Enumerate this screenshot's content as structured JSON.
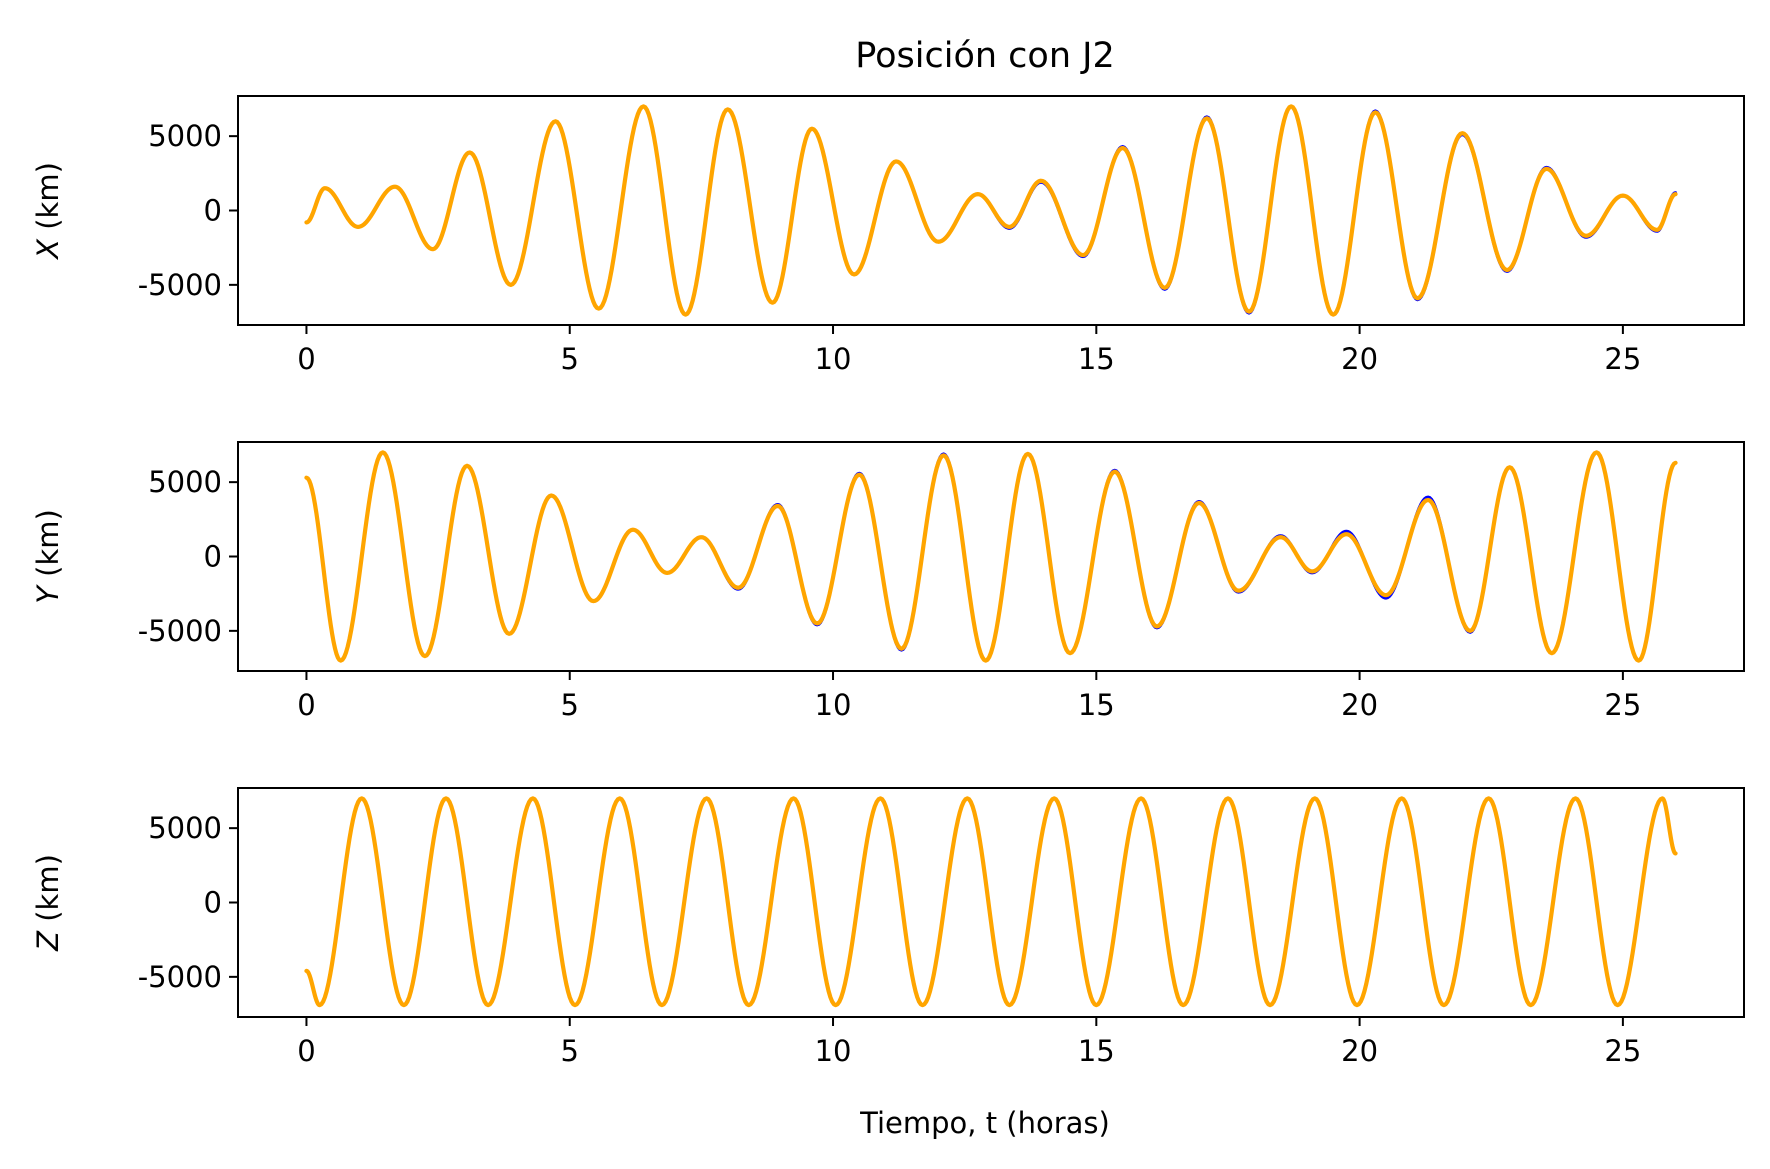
{
  "chart_data": {
    "title": "Posición con J2",
    "xlabel": "Tiempo, t (horas)",
    "type": "line",
    "subplots": [
      {
        "ylabel_var": "X",
        "ylabel_unit": " (km)",
        "xlim": [
          -1.3,
          27.3
        ],
        "ylim": [
          -7700,
          7700
        ],
        "xticks": [
          0,
          5,
          10,
          15,
          20,
          25
        ],
        "yticks": [
          5000,
          0,
          -5000
        ],
        "yticklabels": [
          "5000",
          "0",
          "-5000"
        ],
        "series": [
          {
            "color": "#0000ff",
            "x": [
              0,
              0.35,
              0.98,
              1.68,
              2.4,
              3.1,
              3.88,
              4.73,
              5.55,
              6.4,
              7.2,
              8.0,
              8.85,
              9.6,
              10.4,
              11.2,
              12.0,
              12.75,
              13.35,
              13.95,
              14.75,
              15.5,
              16.3,
              17.1,
              17.9,
              18.7,
              19.5,
              20.3,
              21.1,
              21.95,
              22.8,
              23.55,
              24.3,
              25.0,
              25.65,
              26.0
            ],
            "y": [
              -800,
              1500,
              -1100,
              1600,
              -2600,
              3900,
              -5000,
              6000,
              -6600,
              7000,
              -7000,
              6800,
              -6200,
              5500,
              -4300,
              3300,
              -2100,
              1100,
              -1200,
              1900,
              -3100,
              4300,
              -5300,
              6300,
              -6900,
              7000,
              -7000,
              6700,
              -6000,
              5100,
              -4100,
              2900,
              -1800,
              1000,
              -1400,
              1200
            ]
          },
          {
            "color": "#ffa500",
            "x": [
              0,
              0.35,
              0.98,
              1.68,
              2.4,
              3.1,
              3.88,
              4.73,
              5.55,
              6.4,
              7.2,
              8.0,
              8.85,
              9.6,
              10.4,
              11.2,
              12.0,
              12.75,
              13.35,
              13.95,
              14.75,
              15.5,
              16.3,
              17.1,
              17.9,
              18.7,
              19.5,
              20.3,
              21.1,
              21.95,
              22.8,
              23.55,
              24.3,
              25.0,
              25.65,
              26.0
            ],
            "y": [
              -800,
              1500,
              -1100,
              1600,
              -2600,
              3900,
              -5000,
              6000,
              -6600,
              7000,
              -7000,
              6800,
              -6200,
              5500,
              -4300,
              3300,
              -2100,
              1100,
              -1100,
              2000,
              -3000,
              4200,
              -5200,
              6200,
              -6800,
              7000,
              -7000,
              6600,
              -5900,
              5200,
              -4000,
              2800,
              -1700,
              1000,
              -1300,
              1100
            ]
          }
        ]
      },
      {
        "ylabel_var": "Y",
        "ylabel_unit": " (km)",
        "xlim": [
          -1.3,
          27.3
        ],
        "ylim": [
          -7700,
          7700
        ],
        "xticks": [
          0,
          5,
          10,
          15,
          20,
          25
        ],
        "yticks": [
          5000,
          0,
          -5000
        ],
        "yticklabels": [
          "5000",
          "0",
          "-5000"
        ],
        "series": [
          {
            "color": "#0000ff",
            "x": [
              0,
              0.65,
              1.45,
              2.25,
              3.05,
              3.85,
              4.65,
              5.45,
              6.2,
              6.85,
              7.5,
              8.2,
              8.95,
              9.7,
              10.5,
              11.3,
              12.1,
              12.9,
              13.7,
              14.5,
              15.35,
              16.15,
              16.95,
              17.7,
              18.5,
              19.1,
              19.75,
              20.5,
              21.3,
              22.1,
              22.85,
              23.65,
              24.5,
              25.3,
              26.0
            ],
            "y": [
              5300,
              -7000,
              7000,
              -6700,
              6100,
              -5200,
              4100,
              -3000,
              1800,
              -1100,
              1300,
              -2200,
              3500,
              -4600,
              5600,
              -6300,
              6900,
              -7000,
              6900,
              -6500,
              5800,
              -4800,
              3700,
              -2400,
              1400,
              -1100,
              1700,
              -2800,
              4000,
              -5100,
              6000,
              -6500,
              7000,
              -7000,
              6300
            ]
          },
          {
            "color": "#ffa500",
            "x": [
              0,
              0.65,
              1.45,
              2.25,
              3.05,
              3.85,
              4.65,
              5.45,
              6.2,
              6.85,
              7.5,
              8.2,
              8.95,
              9.7,
              10.5,
              11.3,
              12.1,
              12.9,
              13.7,
              14.5,
              15.35,
              16.15,
              16.95,
              17.7,
              18.5,
              19.1,
              19.75,
              20.5,
              21.3,
              22.1,
              22.85,
              23.65,
              24.5,
              25.3,
              26.0
            ],
            "y": [
              5300,
              -7000,
              7000,
              -6700,
              6100,
              -5200,
              4100,
              -3000,
              1800,
              -1100,
              1300,
              -2100,
              3400,
              -4500,
              5500,
              -6200,
              6800,
              -7000,
              6900,
              -6500,
              5700,
              -4700,
              3600,
              -2300,
              1300,
              -1000,
              1500,
              -2600,
              3800,
              -5000,
              6000,
              -6500,
              7000,
              -7000,
              6300
            ]
          }
        ]
      },
      {
        "ylabel_var": "Z",
        "ylabel_unit": " (km)",
        "xlim": [
          -1.3,
          27.3
        ],
        "ylim": [
          -7700,
          7700
        ],
        "xticks": [
          0,
          5,
          10,
          15,
          20,
          25
        ],
        "yticks": [
          5000,
          0,
          -5000
        ],
        "yticklabels": [
          "5000",
          "0",
          "-5000"
        ],
        "series": [
          {
            "color": "#0000ff",
            "x": [
              0,
              0.25,
              1.05,
              1.85,
              2.65,
              3.45,
              4.3,
              5.1,
              5.95,
              6.75,
              7.6,
              8.4,
              9.25,
              10.05,
              10.9,
              11.7,
              12.55,
              13.35,
              14.2,
              15.0,
              15.85,
              16.65,
              17.5,
              18.3,
              19.15,
              19.95,
              20.8,
              21.6,
              22.45,
              23.25,
              24.1,
              24.9,
              25.75,
              26.0
            ],
            "y": [
              -4600,
              -6900,
              7000,
              -6900,
              7000,
              -6900,
              7000,
              -6900,
              7000,
              -6900,
              7000,
              -6900,
              7000,
              -6900,
              7000,
              -6900,
              7000,
              -6900,
              7000,
              -6900,
              7000,
              -6900,
              7000,
              -6900,
              7000,
              -6900,
              7000,
              -6900,
              7000,
              -6900,
              7000,
              -6900,
              7000,
              3300
            ]
          },
          {
            "color": "#ffa500",
            "x": [
              0,
              0.25,
              1.05,
              1.85,
              2.65,
              3.45,
              4.3,
              5.1,
              5.95,
              6.75,
              7.6,
              8.4,
              9.25,
              10.05,
              10.9,
              11.7,
              12.55,
              13.35,
              14.2,
              15.0,
              15.85,
              16.65,
              17.5,
              18.3,
              19.15,
              19.95,
              20.8,
              21.6,
              22.45,
              23.25,
              24.1,
              24.9,
              25.75,
              26.0
            ],
            "y": [
              -4600,
              -6900,
              7000,
              -6900,
              7000,
              -6900,
              7000,
              -6900,
              7000,
              -6900,
              7000,
              -6900,
              7000,
              -6900,
              7000,
              -6900,
              7000,
              -6900,
              7000,
              -6900,
              7000,
              -6900,
              7000,
              -6900,
              7000,
              -6900,
              7000,
              -6900,
              7000,
              -6900,
              7000,
              -6900,
              7000,
              3300
            ]
          }
        ]
      }
    ]
  }
}
